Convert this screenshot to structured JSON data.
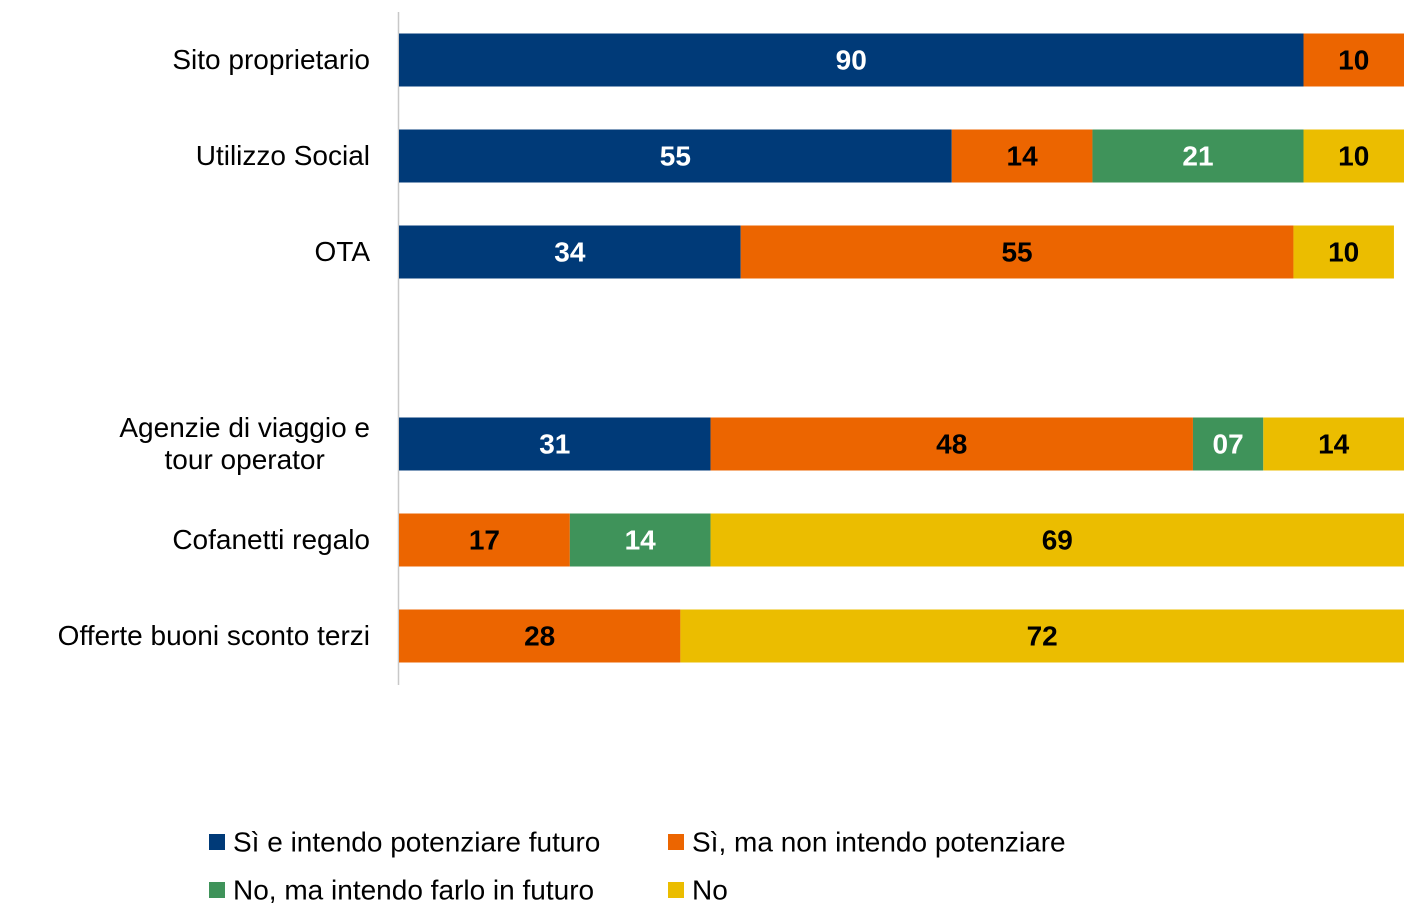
{
  "chart_data": {
    "type": "stacked_barh",
    "categories": [
      "Sito proprietario",
      "Utilizzo Social",
      "OTA",
      null,
      "Agenzie di viaggio e\ntour operator",
      "Cofanetti regalo",
      "Offerte buoni sconto terzi"
    ],
    "series": [
      {
        "name": "Sì e intendo potenziare futuro",
        "color": "#003a78",
        "label_color": "#ffffff",
        "values": [
          90,
          55,
          34,
          null,
          31,
          null,
          null
        ]
      },
      {
        "name": "Sì, ma non intendo potenziare",
        "color": "#ec6500",
        "label_color": "#000000",
        "values": [
          10,
          14,
          55,
          null,
          48,
          17,
          28
        ]
      },
      {
        "name": "No, ma intendo farlo in futuro",
        "color": "#3f935a",
        "label_color": "#ffffff",
        "values": [
          null,
          21,
          null,
          null,
          7,
          14,
          null
        ],
        "value_labels": [
          null,
          "21",
          null,
          null,
          "07",
          "14",
          null
        ]
      },
      {
        "name": "No",
        "color": "#ebbd00",
        "label_color": "#000000",
        "values": [
          null,
          10,
          10,
          null,
          14,
          69,
          72
        ]
      }
    ],
    "xlim": [
      0,
      100
    ],
    "legend": "bottom"
  }
}
